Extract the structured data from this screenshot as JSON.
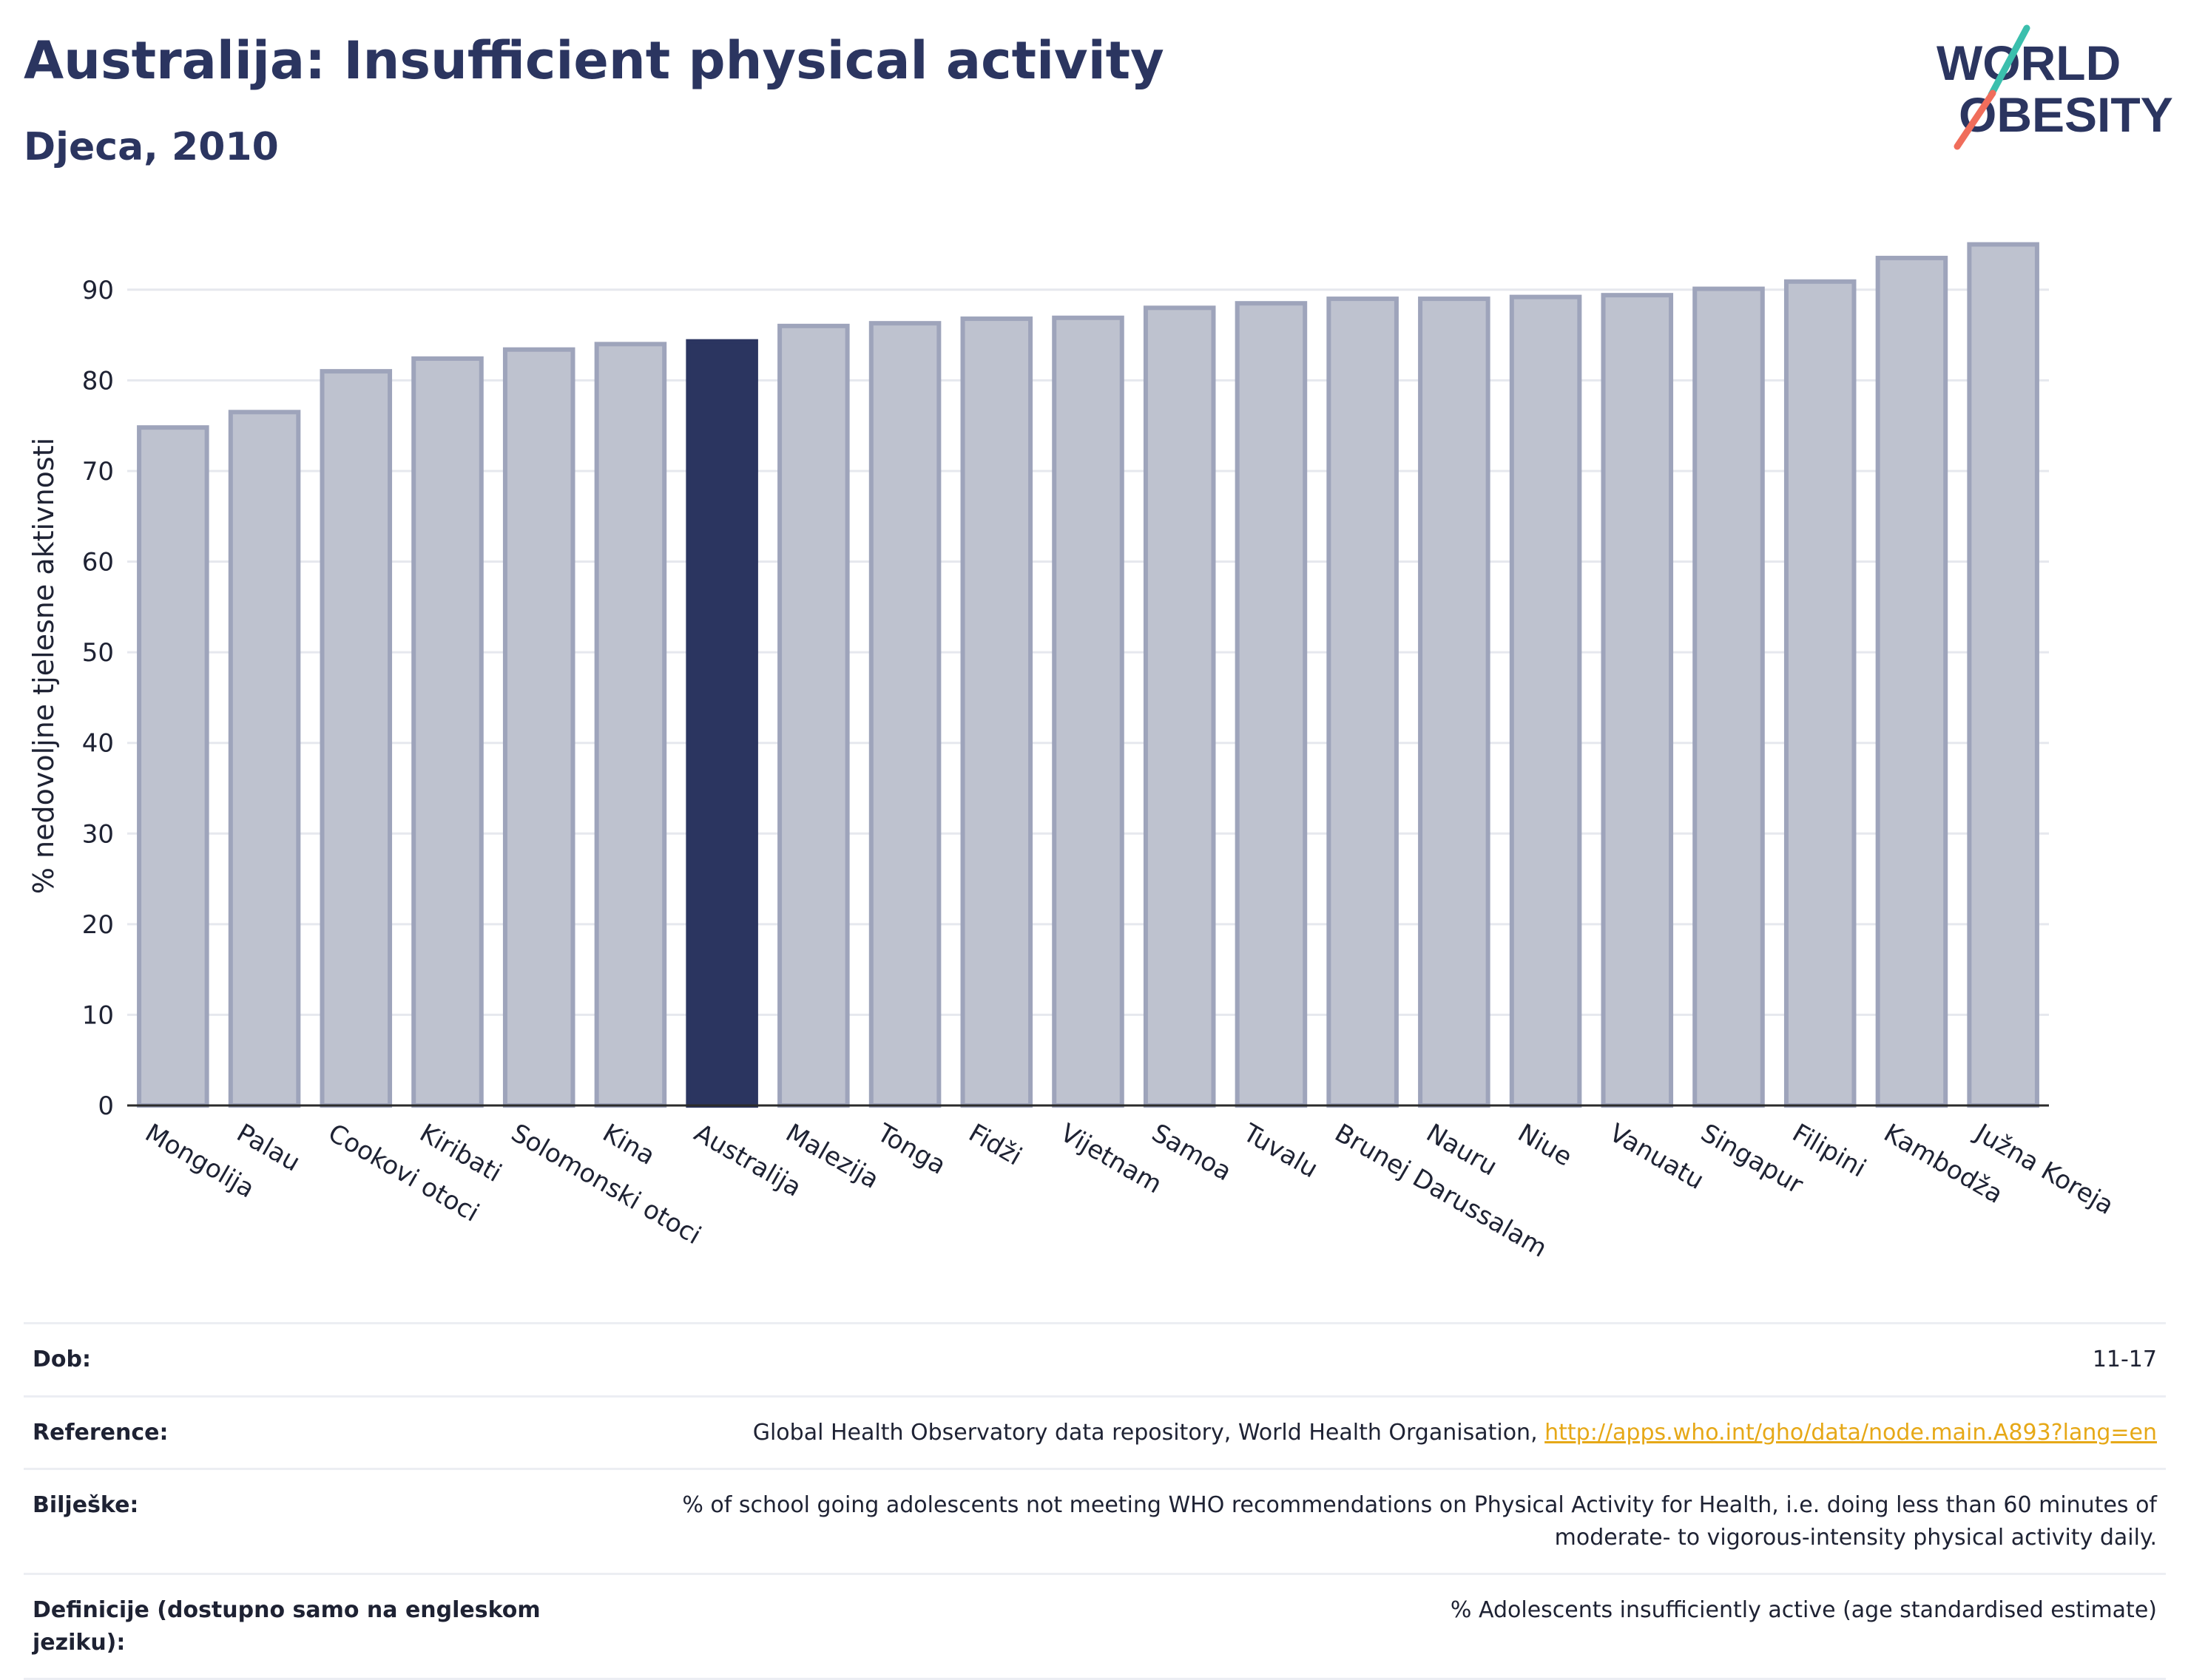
{
  "header": {
    "title": "Australija: Insufficient physical activity",
    "subtitle": "Djeca, 2010"
  },
  "logo": {
    "line1": "WORLD",
    "line2": "OBESITY",
    "colors": [
      "#2b3560",
      "#3bbfad",
      "#f06d5b"
    ]
  },
  "chart_data": {
    "type": "bar",
    "categories": [
      "Mongolija",
      "Palau",
      "Cookovi otoci",
      "Kiribati",
      "Solomonski otoci",
      "Kina",
      "Australija",
      "Malezija",
      "Tonga",
      "Fidži",
      "Vijetnam",
      "Samoa",
      "Tuvalu",
      "Brunej Darussalam",
      "Nauru",
      "Niue",
      "Vanuatu",
      "Singapur",
      "Filipini",
      "Kambodža",
      "Južna Koreja"
    ],
    "values": [
      74.8,
      76.5,
      81.0,
      82.4,
      83.4,
      84.0,
      84.3,
      86.0,
      86.3,
      86.8,
      86.9,
      88.0,
      88.5,
      89.0,
      89.0,
      89.2,
      89.4,
      90.1,
      90.9,
      93.5,
      95.0
    ],
    "highlight": "Australija",
    "ylabel": "% nedovoljne tjelesne aktivnosti",
    "yticks": [
      0,
      10,
      20,
      30,
      40,
      50,
      60,
      70,
      80,
      90
    ],
    "ylim": [
      0,
      97
    ],
    "grid": true,
    "colors": {
      "bar": "#bec2cf",
      "bar_edge": "#9ea4bb",
      "highlight": "#2b3560",
      "grid": "#e6e8ee"
    }
  },
  "info": {
    "age_label": "Dob:",
    "age_value": "11-17",
    "ref_label": "Reference:",
    "ref_text": "Global Health Observatory data repository, World Health Organisation, ",
    "ref_link": "http://apps.who.int/gho/data/node.main.A893?lang=en",
    "notes_label": "Bilješke:",
    "notes_value": "% of school going adolescents not meeting WHO recommendations on Physical Activity for Health, i.e. doing less than 60 minutes of moderate- to vigorous-intensity physical activity daily.",
    "def_label": "Definicije (dostupno samo na engleskom jeziku):",
    "def_value": "% Adolescents insufficiently active (age standardised estimate)"
  }
}
